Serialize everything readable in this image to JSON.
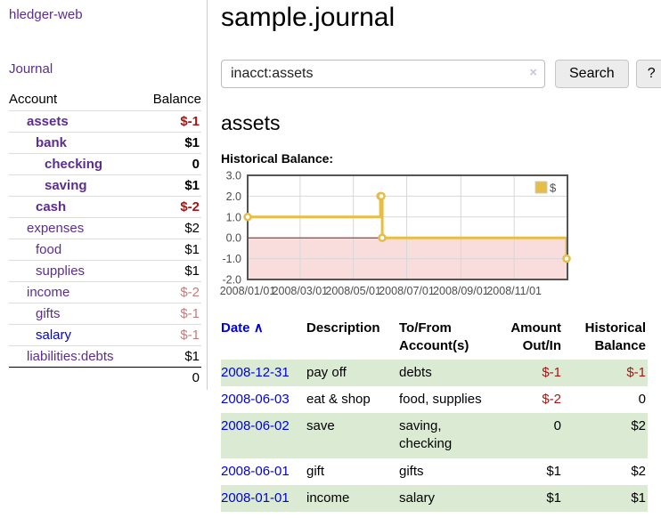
{
  "app": {
    "brand": "hledger-web",
    "nav_journal": "Journal"
  },
  "sidebar": {
    "columns": {
      "account": "Account",
      "balance": "Balance"
    },
    "rows": [
      {
        "account": "assets",
        "indent": 1,
        "bold": true,
        "link": "purple",
        "balance": "$-1",
        "balance_style": "neg"
      },
      {
        "account": "bank",
        "indent": 2,
        "bold": true,
        "link": "purple",
        "balance": "$1",
        "balance_style": "pos"
      },
      {
        "account": "checking",
        "indent": 3,
        "bold": true,
        "link": "purple",
        "balance": "0",
        "balance_style": "pos"
      },
      {
        "account": "saving",
        "indent": 3,
        "bold": true,
        "link": "purple",
        "balance": "$1",
        "balance_style": "pos"
      },
      {
        "account": "cash",
        "indent": 2,
        "bold": true,
        "link": "purple",
        "balance": "$-2",
        "balance_style": "neg"
      },
      {
        "account": "expenses",
        "indent": 1,
        "bold": false,
        "link": "purple",
        "balance": "$2",
        "balance_style": "pos"
      },
      {
        "account": "food",
        "indent": 2,
        "bold": false,
        "link": "purple",
        "balance": "$1",
        "balance_style": "pos"
      },
      {
        "account": "supplies",
        "indent": 2,
        "bold": false,
        "link": "purple",
        "balance": "$1",
        "balance_style": "pos"
      },
      {
        "account": "income",
        "indent": 1,
        "bold": false,
        "link": "purple",
        "balance": "$-2",
        "balance_style": "negmuted"
      },
      {
        "account": "gifts",
        "indent": 2,
        "bold": false,
        "link": "purple",
        "balance": "$-1",
        "balance_style": "negmuted"
      },
      {
        "account": "salary",
        "indent": 2,
        "bold": false,
        "link": "blue",
        "balance": "$-1",
        "balance_style": "negmuted"
      },
      {
        "account": "liabilities:debts",
        "indent": 1,
        "bold": false,
        "link": "purple",
        "balance": "$1",
        "balance_style": "pos"
      }
    ],
    "total": "0"
  },
  "header": {
    "title": "sample.journal"
  },
  "search": {
    "value": "inacct:assets",
    "clear_icon": "×",
    "button_label": "Search",
    "help_label": "?"
  },
  "account_page": {
    "title": "assets",
    "chart_label": "Historical Balance:"
  },
  "chart_data": {
    "type": "line",
    "line_style": "step",
    "title": "Historical Balance",
    "series": [
      {
        "name": "$",
        "color": "#e6bd45",
        "points": [
          {
            "x": "2008-01-01",
            "y": 1
          },
          {
            "x": "2008-06-01",
            "y": 2
          },
          {
            "x": "2008-06-02",
            "y": 2
          },
          {
            "x": "2008-06-03",
            "y": 0
          },
          {
            "x": "2008-12-31",
            "y": -1
          }
        ]
      }
    ],
    "x_ticks": [
      "2008/01/01",
      "2008/03/01",
      "2008/05/01",
      "2008/07/01",
      "2008/09/01",
      "2008/11/01"
    ],
    "y_ticks": [
      "3.0",
      "2.0",
      "1.0",
      "0.0",
      "-1.0",
      "-2.0"
    ],
    "ylim": [
      -2,
      3
    ],
    "xlim": [
      "2008-01-01",
      "2009-01-01"
    ],
    "grid": true,
    "legend": {
      "label": "$",
      "position": "top-right"
    },
    "negative_region_color": "#f9dcdc",
    "zero_line_color": "#8b1a1a",
    "border_color": "#545454",
    "grid_color": "#d8d8d8",
    "tick_color": "#4d4d4d"
  },
  "transactions": {
    "columns": {
      "date": "Date",
      "description": "Description",
      "accounts": "To/From Account(s)",
      "amount": "Amount Out/In",
      "balance": "Historical Balance"
    },
    "sort_icon": "∧",
    "rows": [
      {
        "date": "2008-12-31",
        "description": "pay off",
        "accounts": "debts",
        "amount": "$-1",
        "amount_style": "neg",
        "balance": "$-1",
        "balance_style": "neg"
      },
      {
        "date": "2008-06-03",
        "description": "eat & shop",
        "accounts": "food, supplies",
        "amount": "$-2",
        "amount_style": "neg",
        "balance": "0",
        "balance_style": "pos"
      },
      {
        "date": "2008-06-02",
        "description": "save",
        "accounts": "saving, checking",
        "amount": "0",
        "amount_style": "pos",
        "balance": "$2",
        "balance_style": "pos"
      },
      {
        "date": "2008-06-01",
        "description": "gift",
        "accounts": "gifts",
        "amount": "$1",
        "amount_style": "pos",
        "balance": "$2",
        "balance_style": "pos"
      },
      {
        "date": "2008-01-01",
        "description": "income",
        "accounts": "salary",
        "amount": "$1",
        "amount_style": "pos",
        "balance": "$1",
        "balance_style": "pos"
      }
    ]
  },
  "colors": {
    "link_purple": "#5c2d91",
    "link_blue": "#0000e0",
    "negative": "#a01818",
    "negative_muted": "#bf7d7d",
    "row_stripe_green": "#dbead3",
    "chart_gold": "#e6bd45"
  }
}
